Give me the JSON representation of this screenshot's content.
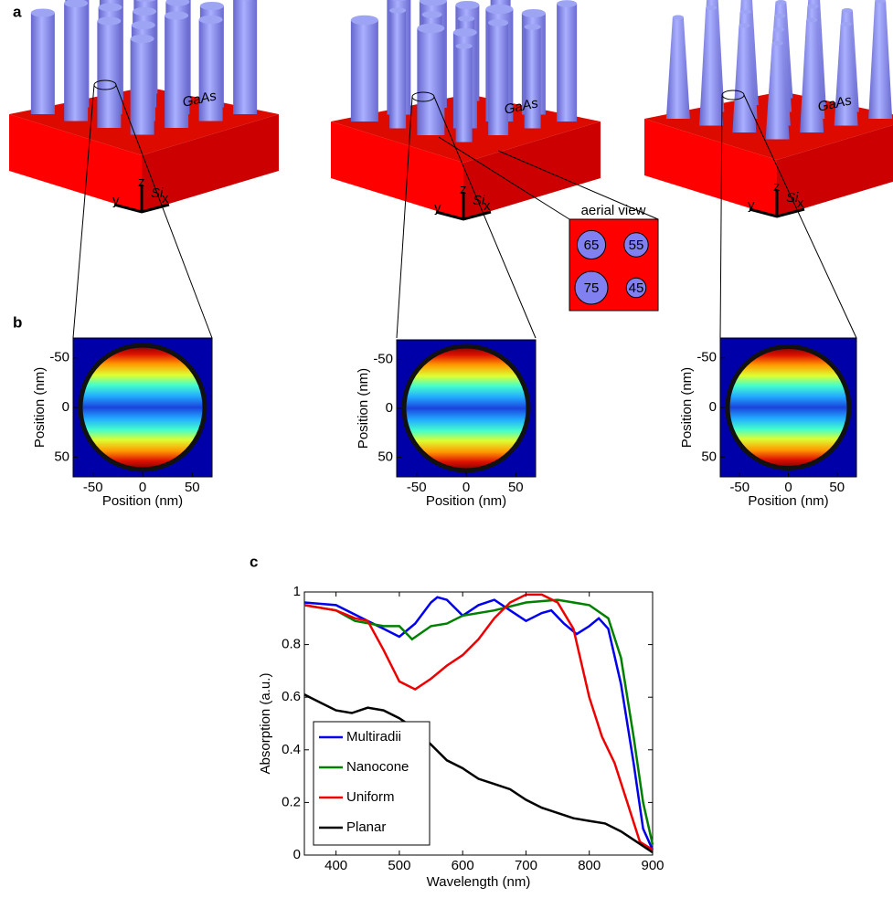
{
  "panel_labels": [
    "a",
    "b",
    "c"
  ],
  "schematic": {
    "nanowire": "GaAs",
    "substrate": "Si",
    "axes": [
      "x",
      "y",
      "z"
    ]
  },
  "aerial_view": {
    "title": "aerial view",
    "radii": [
      65,
      55,
      75,
      45
    ]
  },
  "chart_data": [
    {
      "type": "heatmap",
      "xlabel": "Position (nm)",
      "ylabel": "Position (nm)",
      "xlim": [
        -70,
        70
      ],
      "ylim": [
        70,
        -70
      ],
      "xticks": [
        -50,
        0,
        50
      ],
      "yticks": [
        -50,
        0,
        50
      ]
    },
    {
      "type": "heatmap",
      "xlabel": "Position (nm)",
      "ylabel": "Position (nm)",
      "xlim": [
        -70,
        70
      ],
      "ylim": [
        70,
        -70
      ],
      "xticks": [
        -50,
        0,
        50
      ],
      "yticks": [
        -50,
        0,
        50
      ]
    },
    {
      "type": "heatmap",
      "xlabel": "Position (nm)",
      "ylabel": "Position (nm)",
      "xlim": [
        -70,
        70
      ],
      "ylim": [
        70,
        -70
      ],
      "xticks": [
        -50,
        0,
        50
      ],
      "yticks": [
        -50,
        0,
        50
      ]
    },
    {
      "type": "line",
      "xlabel": "Wavelength (nm)",
      "ylabel": "Absorption (a.u.)",
      "xlim": [
        350,
        900
      ],
      "ylim": [
        0,
        1
      ],
      "xticks": [
        400,
        500,
        600,
        700,
        800,
        900
      ],
      "yticks": [
        0,
        0.2,
        0.4,
        0.6,
        0.8,
        1
      ],
      "legend": "lower left",
      "series": [
        {
          "name": "Multiradii",
          "color": "#0000ee",
          "x": [
            350,
            400,
            450,
            475,
            500,
            525,
            550,
            560,
            575,
            600,
            625,
            650,
            675,
            700,
            725,
            740,
            760,
            780,
            800,
            815,
            830,
            850,
            870,
            885,
            900
          ],
          "values": [
            0.96,
            0.95,
            0.89,
            0.86,
            0.83,
            0.88,
            0.96,
            0.98,
            0.97,
            0.91,
            0.95,
            0.97,
            0.93,
            0.89,
            0.92,
            0.93,
            0.88,
            0.84,
            0.87,
            0.9,
            0.86,
            0.65,
            0.35,
            0.1,
            0.02
          ]
        },
        {
          "name": "Nanocone",
          "color": "#008000",
          "x": [
            350,
            400,
            430,
            475,
            500,
            520,
            550,
            575,
            600,
            650,
            700,
            750,
            800,
            830,
            850,
            870,
            885,
            900
          ],
          "values": [
            0.95,
            0.93,
            0.89,
            0.87,
            0.87,
            0.82,
            0.87,
            0.88,
            0.91,
            0.93,
            0.96,
            0.97,
            0.95,
            0.9,
            0.75,
            0.45,
            0.2,
            0.04
          ]
        },
        {
          "name": "Uniform",
          "color": "#ee0000",
          "x": [
            350,
            400,
            430,
            450,
            475,
            500,
            525,
            550,
            575,
            600,
            625,
            650,
            675,
            700,
            725,
            750,
            775,
            800,
            820,
            840,
            860,
            880,
            900
          ],
          "values": [
            0.95,
            0.93,
            0.9,
            0.89,
            0.78,
            0.66,
            0.63,
            0.67,
            0.72,
            0.76,
            0.82,
            0.9,
            0.96,
            0.99,
            0.99,
            0.96,
            0.86,
            0.6,
            0.45,
            0.35,
            0.2,
            0.05,
            0.02
          ]
        },
        {
          "name": "Planar",
          "color": "#000000",
          "x": [
            350,
            375,
            400,
            425,
            450,
            475,
            500,
            525,
            550,
            575,
            600,
            625,
            650,
            675,
            700,
            725,
            750,
            775,
            800,
            825,
            850,
            875,
            900
          ],
          "values": [
            0.61,
            0.58,
            0.55,
            0.54,
            0.56,
            0.55,
            0.52,
            0.48,
            0.42,
            0.36,
            0.33,
            0.29,
            0.27,
            0.25,
            0.21,
            0.18,
            0.16,
            0.14,
            0.13,
            0.12,
            0.09,
            0.05,
            0.01
          ]
        }
      ]
    }
  ]
}
